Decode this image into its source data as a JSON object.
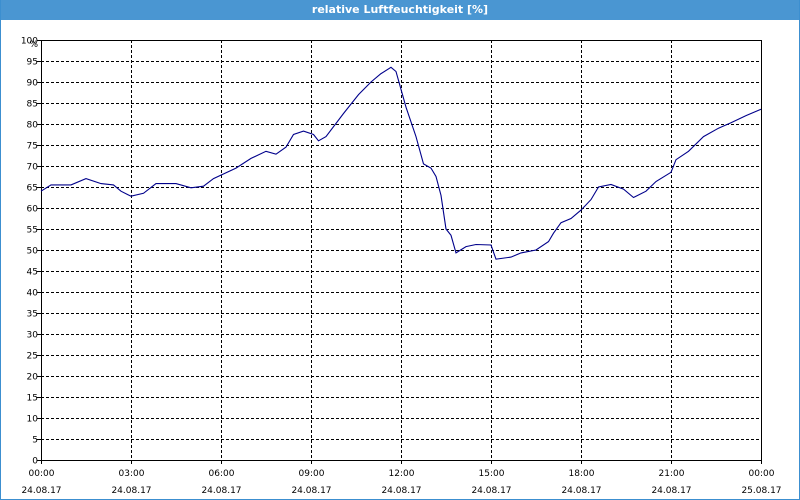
{
  "window": {
    "title": "relative Luftfeuchtigkeit [%]",
    "title_bar_color": "#4a96d2"
  },
  "chart_data": {
    "type": "line",
    "title": "relative Luftfeuchtigkeit [%]",
    "ylabel": "%",
    "xlabel": "",
    "ylim": [
      0,
      100
    ],
    "yticks": [
      0,
      5,
      10,
      15,
      20,
      25,
      30,
      35,
      40,
      45,
      50,
      55,
      60,
      65,
      70,
      75,
      80,
      85,
      90,
      95,
      100
    ],
    "xlim": [
      "24.08.17 00:00",
      "25.08.17 00:00"
    ],
    "xticks": [
      {
        "time": "00:00",
        "date": "24.08.17"
      },
      {
        "time": "03:00",
        "date": "24.08.17"
      },
      {
        "time": "06:00",
        "date": "24.08.17"
      },
      {
        "time": "09:00",
        "date": "24.08.17"
      },
      {
        "time": "12:00",
        "date": "24.08.17"
      },
      {
        "time": "15:00",
        "date": "24.08.17"
      },
      {
        "time": "18:00",
        "date": "24.08.17"
      },
      {
        "time": "21:00",
        "date": "24.08.17"
      },
      {
        "time": "00:00",
        "date": "25.08.17"
      }
    ],
    "grid": true,
    "line_color": "#00008b",
    "series": [
      {
        "points": [
          [
            "24.08.17 00:00",
            64
          ],
          [
            "24.08.17 00:20",
            65.5
          ],
          [
            "24.08.17 01:00",
            65.5
          ],
          [
            "24.08.17 01:30",
            67
          ],
          [
            "24.08.17 02:00",
            65.8
          ],
          [
            "24.08.17 02:25",
            65.5
          ],
          [
            "24.08.17 02:40",
            64
          ],
          [
            "24.08.17 03:00",
            62.8
          ],
          [
            "24.08.17 03:25",
            63.5
          ],
          [
            "24.08.17 03:50",
            65.8
          ],
          [
            "24.08.17 04:30",
            65.8
          ],
          [
            "24.08.17 05:00",
            64.8
          ],
          [
            "24.08.17 05:25",
            65.2
          ],
          [
            "24.08.17 05:45",
            67
          ],
          [
            "24.08.17 06:30",
            69.5
          ],
          [
            "24.08.17 07:00",
            71.8
          ],
          [
            "24.08.17 07:30",
            73.5
          ],
          [
            "24.08.17 07:50",
            72.8
          ],
          [
            "24.08.17 08:10",
            74.5
          ],
          [
            "24.08.17 08:25",
            77.5
          ],
          [
            "24.08.17 08:45",
            78.3
          ],
          [
            "24.08.17 09:05",
            77.5
          ],
          [
            "24.08.17 09:15",
            76
          ],
          [
            "24.08.17 09:30",
            77
          ],
          [
            "24.08.17 10:05",
            82.5
          ],
          [
            "24.08.17 10:35",
            87
          ],
          [
            "24.08.17 11:00",
            90
          ],
          [
            "24.08.17 11:20",
            92
          ],
          [
            "24.08.17 11:40",
            93.5
          ],
          [
            "24.08.17 11:50",
            92.5
          ],
          [
            "24.08.17 12:10",
            84
          ],
          [
            "24.08.17 12:30",
            77
          ],
          [
            "24.08.17 12:45",
            70.5
          ],
          [
            "24.08.17 13:00",
            69.5
          ],
          [
            "24.08.17 13:10",
            67.5
          ],
          [
            "24.08.17 13:20",
            63
          ],
          [
            "24.08.17 13:30",
            55
          ],
          [
            "24.08.17 13:40",
            53.5
          ],
          [
            "24.08.17 13:50",
            49.3
          ],
          [
            "24.08.17 14:10",
            50.8
          ],
          [
            "24.08.17 14:30",
            51.3
          ],
          [
            "24.08.17 15:00",
            51.2
          ],
          [
            "24.08.17 15:10",
            47.8
          ],
          [
            "24.08.17 15:40",
            48.3
          ],
          [
            "24.08.17 16:00",
            49.3
          ],
          [
            "24.08.17 16:30",
            50
          ],
          [
            "24.08.17 16:55",
            52
          ],
          [
            "24.08.17 17:05",
            54
          ],
          [
            "24.08.17 17:20",
            56.5
          ],
          [
            "24.08.17 17:40",
            57.5
          ],
          [
            "24.08.17 18:00",
            59.5
          ],
          [
            "24.08.17 18:20",
            62
          ],
          [
            "24.08.17 18:35",
            65
          ],
          [
            "24.08.17 19:00",
            65.6
          ],
          [
            "24.08.17 19:25",
            64.5
          ],
          [
            "24.08.17 19:45",
            62.5
          ],
          [
            "24.08.17 20:10",
            64
          ],
          [
            "24.08.17 20:30",
            66.3
          ],
          [
            "24.08.17 21:00",
            68.5
          ],
          [
            "24.08.17 21:10",
            71.5
          ],
          [
            "24.08.17 21:35",
            73.5
          ],
          [
            "24.08.17 22:05",
            77
          ],
          [
            "24.08.17 22:35",
            79
          ],
          [
            "24.08.17 23:00",
            80.3
          ],
          [
            "24.08.17 23:30",
            82
          ],
          [
            "25.08.17 00:00",
            83.5
          ]
        ]
      }
    ]
  }
}
